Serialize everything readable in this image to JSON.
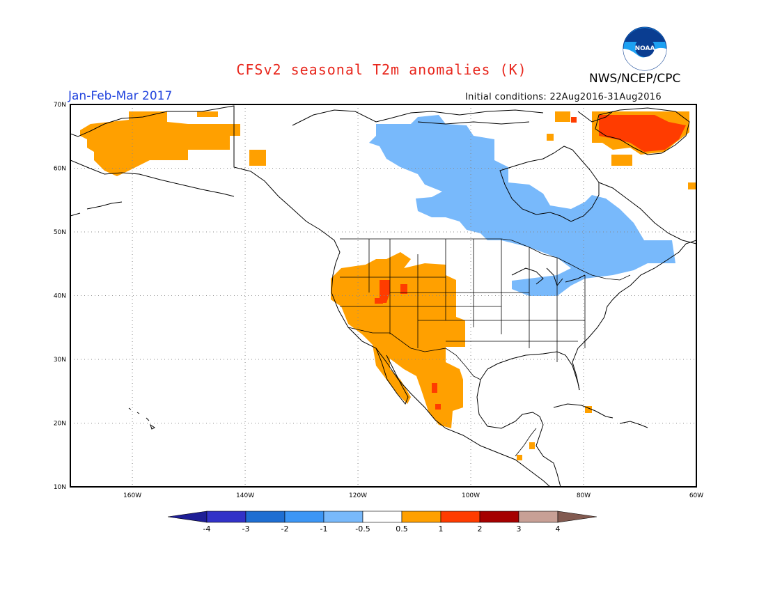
{
  "header": {
    "title": "CFSv2 seasonal T2m anomalies (K)",
    "season": "Jan-Feb-Mar 2017",
    "initial_conditions": "Initial conditions: 22Aug2016-31Aug2016",
    "agency": "NWS/NCEP/CPC",
    "logo_text": "NOAA"
  },
  "map": {
    "lat_labels": [
      "70N",
      "60N",
      "50N",
      "40N",
      "30N",
      "20N",
      "10N"
    ],
    "lon_labels": [
      "160W",
      "140W",
      "120W",
      "100W",
      "80W",
      "60W"
    ],
    "extent": {
      "lon_min": -171,
      "lon_max": -60,
      "lat_min": 10,
      "lat_max": 70
    },
    "gridlines": "dotted",
    "colors": {
      "coast": "#000000",
      "border": "#000000",
      "grid": "#888888"
    }
  },
  "anomaly_regions": [
    {
      "name": "alaska-warm",
      "category": "0.5-1",
      "color": "#ffa000"
    },
    {
      "name": "canada-cool",
      "category": "-1--0.5",
      "color": "#78b9fb"
    },
    {
      "name": "southwest-us-warm",
      "category": "0.5-1",
      "color": "#ffa000"
    },
    {
      "name": "great-basin-hot",
      "category": "1-2",
      "color": "#ff3c00"
    },
    {
      "name": "mexico-warm",
      "category": "0.5-1",
      "color": "#ffa000"
    },
    {
      "name": "northeast-cool",
      "category": "-1--0.5",
      "color": "#78b9fb"
    },
    {
      "name": "greenland-hot",
      "category": "1-2",
      "color": "#ff3c00"
    },
    {
      "name": "greenland-warm",
      "category": "0.5-1",
      "color": "#ffa000"
    }
  ],
  "colorbar": {
    "labels": [
      "-4",
      "-3",
      "-2",
      "-1",
      "-0.5",
      "0.5",
      "1",
      "2",
      "3",
      "4"
    ],
    "colors": [
      "#1e1e96",
      "#3232c8",
      "#1e6ed2",
      "#3c96f5",
      "#78b9fb",
      "#ffffff",
      "#ffa000",
      "#ff3c00",
      "#a50000",
      "#c8a096",
      "#825a50"
    ]
  }
}
